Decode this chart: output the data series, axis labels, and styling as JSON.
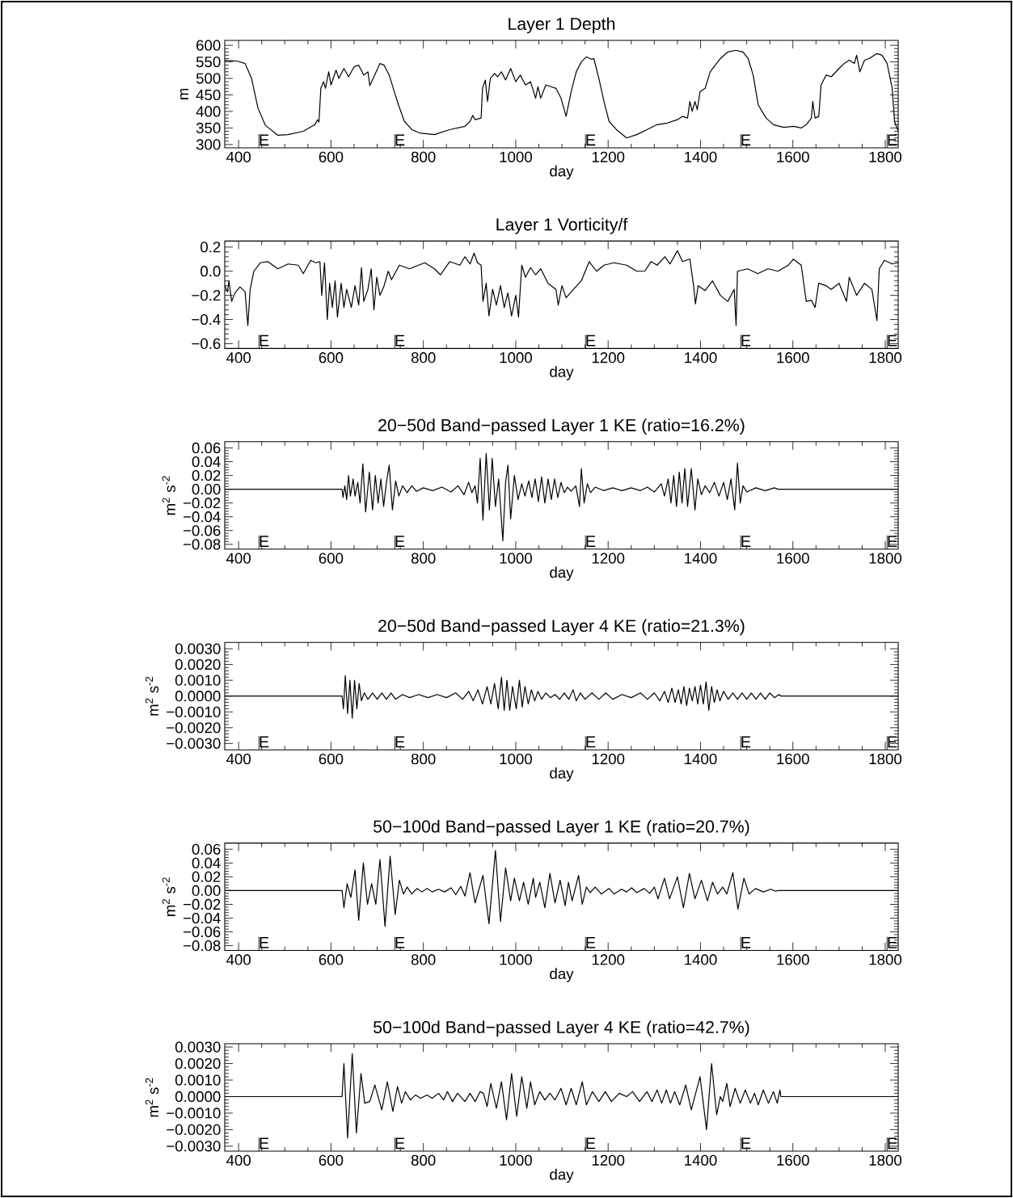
{
  "chart_data": [
    {
      "type": "line",
      "title": "Layer 1 Depth",
      "xlabel": "day",
      "ylabel": "m",
      "color": "#000000",
      "xlim": [
        370,
        1828
      ],
      "ylim": [
        290,
        615
      ],
      "xticks": [
        400,
        600,
        800,
        1000,
        1200,
        1400,
        1600,
        1800
      ],
      "yticks": [
        300,
        350,
        400,
        450,
        500,
        550,
        600
      ],
      "ref_lines": [
        {
          "axis": "x",
          "value": 444,
          "label": "E"
        },
        {
          "axis": "x",
          "value": 738,
          "label": "E"
        },
        {
          "axis": "x",
          "value": 1151,
          "label": "E"
        },
        {
          "axis": "x",
          "value": 1487,
          "label": "E"
        },
        {
          "axis": "x",
          "value": 1804,
          "label": "E"
        }
      ],
      "x": [
        370,
        398,
        414,
        428,
        442,
        458,
        485,
        507,
        540,
        565,
        571,
        574,
        578,
        584,
        588,
        595,
        600,
        611,
        617,
        628,
        638,
        650,
        660,
        671,
        680,
        684,
        693,
        706,
        715,
        726,
        737,
        746,
        759,
        775,
        792,
        824,
        857,
        890,
        901,
        907,
        912,
        925,
        928,
        934,
        939,
        945,
        954,
        961,
        969,
        978,
        989,
        1000,
        1010,
        1021,
        1032,
        1043,
        1048,
        1054,
        1065,
        1076,
        1087,
        1098,
        1109,
        1120,
        1131,
        1142,
        1153,
        1164,
        1169,
        1180,
        1191,
        1202,
        1218,
        1240,
        1262,
        1284,
        1306,
        1328,
        1350,
        1361,
        1372,
        1377,
        1382,
        1388,
        1393,
        1399,
        1410,
        1421,
        1432,
        1443,
        1459,
        1476,
        1492,
        1503,
        1514,
        1525,
        1542,
        1558,
        1580,
        1602,
        1618,
        1629,
        1640,
        1643,
        1648,
        1656,
        1661,
        1672,
        1683,
        1700,
        1711,
        1722,
        1733,
        1738,
        1745,
        1755,
        1765,
        1782,
        1793,
        1804,
        1815,
        1820,
        1828
      ],
      "values": [
        555,
        552,
        545,
        500,
        410,
        358,
        328,
        330,
        340,
        360,
        375,
        368,
        470,
        490,
        470,
        520,
        480,
        525,
        500,
        530,
        505,
        535,
        540,
        510,
        520,
        478,
        505,
        545,
        540,
        510,
        460,
        420,
        370,
        345,
        335,
        330,
        345,
        355,
        370,
        388,
        375,
        380,
        470,
        495,
        430,
        500,
        515,
        505,
        520,
        495,
        530,
        490,
        510,
        480,
        490,
        440,
        475,
        440,
        480,
        475,
        470,
        440,
        385,
        460,
        520,
        550,
        565,
        558,
        560,
        500,
        430,
        370,
        345,
        320,
        330,
        345,
        360,
        365,
        375,
        385,
        380,
        430,
        400,
        430,
        405,
        460,
        470,
        520,
        540,
        560,
        580,
        585,
        580,
        560,
        510,
        420,
        380,
        360,
        352,
        355,
        350,
        360,
        380,
        430,
        380,
        385,
        480,
        510,
        505,
        530,
        545,
        555,
        545,
        570,
        520,
        555,
        560,
        575,
        570,
        545,
        470,
        370,
        340
      ]
    },
    {
      "type": "line",
      "title": "Layer 1 Vorticity/f",
      "xlabel": "day",
      "color": "#000000",
      "xlim": [
        370,
        1828
      ],
      "ylim": [
        -0.64,
        0.25
      ],
      "xticks": [
        400,
        600,
        800,
        1000,
        1200,
        1400,
        1600,
        1800
      ],
      "yticks": [
        {
          "value": -0.6,
          "label": "−0.6"
        },
        {
          "value": -0.4,
          "label": "−0.4"
        },
        {
          "value": -0.2,
          "label": "−0.2"
        },
        {
          "value": 0,
          "label": "0.0"
        },
        0.2
      ],
      "ref_lines": [
        {
          "axis": "x",
          "value": 444,
          "label": "E"
        },
        {
          "axis": "x",
          "value": 738,
          "label": "E"
        },
        {
          "axis": "x",
          "value": 1151,
          "label": "E"
        },
        {
          "axis": "x",
          "value": 1487,
          "label": "E"
        },
        {
          "axis": "x",
          "value": 1804,
          "label": "E"
        }
      ],
      "x": [
        370,
        376,
        379,
        385,
        392,
        403,
        414,
        420,
        425,
        433,
        447,
        463,
        485,
        507,
        529,
        540,
        556,
        567,
        576,
        580,
        586,
        592,
        597,
        603,
        609,
        614,
        622,
        628,
        634,
        644,
        652,
        660,
        666,
        671,
        680,
        687,
        693,
        699,
        706,
        715,
        724,
        731,
        748,
        770,
        803,
        824,
        837,
        857,
        879,
        890,
        901,
        910,
        917,
        925,
        929,
        936,
        942,
        950,
        958,
        967,
        975,
        983,
        991,
        1000,
        1006,
        1013,
        1021,
        1032,
        1043,
        1054,
        1070,
        1087,
        1092,
        1100,
        1109,
        1125,
        1142,
        1159,
        1175,
        1191,
        1213,
        1240,
        1262,
        1279,
        1293,
        1306,
        1323,
        1334,
        1350,
        1361,
        1377,
        1385,
        1389,
        1395,
        1410,
        1426,
        1443,
        1459,
        1473,
        1477,
        1480,
        1502,
        1524,
        1546,
        1568,
        1590,
        1601,
        1618,
        1629,
        1640,
        1648,
        1656,
        1672,
        1683,
        1700,
        1716,
        1722,
        1738,
        1755,
        1771,
        1782,
        1787,
        1798,
        1815,
        1828
      ],
      "values": [
        -0.12,
        -0.17,
        -0.08,
        -0.25,
        -0.18,
        -0.13,
        -0.17,
        -0.45,
        -0.15,
        0.0,
        0.07,
        0.08,
        0.02,
        0.06,
        0.05,
        -0.02,
        0.09,
        0.07,
        0.08,
        -0.2,
        0.07,
        -0.4,
        -0.1,
        -0.3,
        -0.08,
        -0.38,
        -0.1,
        -0.3,
        -0.15,
        -0.3,
        -0.12,
        -0.28,
        0.03,
        -0.25,
        -0.15,
        0.02,
        -0.32,
        -0.05,
        -0.2,
        -0.12,
        0.0,
        -0.07,
        0.05,
        0.02,
        0.07,
        0.02,
        -0.03,
        0.08,
        0.05,
        0.12,
        0.06,
        0.15,
        0.07,
        0.05,
        -0.25,
        -0.1,
        -0.37,
        -0.15,
        -0.28,
        -0.12,
        -0.3,
        -0.18,
        -0.37,
        -0.2,
        -0.38,
        0.05,
        -0.05,
        0.03,
        -0.03,
        0.02,
        -0.1,
        -0.15,
        -0.28,
        -0.12,
        -0.22,
        -0.15,
        -0.08,
        0.08,
        0.0,
        0.05,
        0.07,
        0.05,
        0.0,
        0.0,
        0.08,
        0.05,
        0.12,
        0.06,
        0.17,
        0.08,
        0.1,
        -0.12,
        -0.27,
        -0.12,
        -0.16,
        -0.08,
        -0.2,
        -0.25,
        -0.15,
        -0.45,
        0.0,
        0.02,
        -0.02,
        0.02,
        0.0,
        0.05,
        0.1,
        0.05,
        -0.25,
        -0.24,
        -0.3,
        -0.1,
        -0.12,
        -0.15,
        -0.1,
        -0.25,
        -0.05,
        -0.2,
        -0.1,
        -0.15,
        -0.41,
        0.02,
        0.09,
        0.06,
        0.07
      ]
    },
    {
      "type": "line",
      "title": "20−50d Band−passed Layer 1 KE (ratio=16.2%)",
      "xlabel": "day",
      "ylabel": "m$^{2}$ s$^{-2}$",
      "color": "#000000",
      "xlim": [
        370,
        1828
      ],
      "ylim": [
        -0.087,
        0.069
      ],
      "xticks": [
        400,
        600,
        800,
        1000,
        1200,
        1400,
        1600,
        1800
      ],
      "yticks": [
        {
          "value": -0.08,
          "label": "−0.08"
        },
        {
          "value": -0.06,
          "label": "−0.06"
        },
        {
          "value": -0.04,
          "label": "−0.04"
        },
        {
          "value": -0.02,
          "label": "−0.02"
        },
        {
          "value": 0,
          "label": "0.00"
        },
        0.02,
        0.04,
        0.06
      ],
      "ref_lines": [
        {
          "axis": "x",
          "value": 444,
          "label": "E"
        },
        {
          "axis": "x",
          "value": 738,
          "label": "E"
        },
        {
          "axis": "x",
          "value": 1151,
          "label": "E"
        },
        {
          "axis": "x",
          "value": 1487,
          "label": "E"
        },
        {
          "axis": "x",
          "value": 1804,
          "label": "E"
        }
      ],
      "x": [
        370,
        624,
        626,
        630,
        634,
        638,
        642,
        648,
        652,
        658,
        663,
        669,
        675,
        683,
        690,
        696,
        702,
        708,
        714,
        720,
        726,
        733,
        740,
        747,
        755,
        765,
        775,
        785,
        800,
        820,
        840,
        860,
        875,
        888,
        898,
        905,
        912,
        917,
        923,
        929,
        936,
        943,
        949,
        956,
        963,
        972,
        978,
        983,
        989,
        997,
        1005,
        1013,
        1020,
        1028,
        1035,
        1042,
        1049,
        1056,
        1063,
        1070,
        1077,
        1084,
        1091,
        1098,
        1105,
        1112,
        1120,
        1130,
        1138,
        1142,
        1148,
        1155,
        1162,
        1172,
        1190,
        1210,
        1230,
        1250,
        1270,
        1285,
        1300,
        1315,
        1322,
        1330,
        1336,
        1342,
        1348,
        1354,
        1360,
        1366,
        1372,
        1380,
        1388,
        1394,
        1402,
        1410,
        1420,
        1430,
        1440,
        1450,
        1458,
        1466,
        1474,
        1480,
        1486,
        1492,
        1500,
        1520,
        1540,
        1560,
        1568,
        1828
      ],
      "values": [
        0,
        0,
        -0.012,
        0.005,
        -0.015,
        0.02,
        -0.01,
        0.015,
        -0.01,
        0.01,
        -0.02,
        0.037,
        -0.033,
        0.025,
        -0.03,
        0.02,
        -0.02,
        0.015,
        -0.025,
        0.01,
        0.035,
        -0.03,
        0.012,
        -0.01,
        0.005,
        -0.005,
        0.005,
        -0.003,
        0.002,
        -0.002,
        0.003,
        -0.004,
        0.005,
        -0.008,
        0.01,
        -0.005,
        0.005,
        -0.02,
        0.045,
        -0.045,
        0.052,
        -0.03,
        0.045,
        -0.025,
        0.015,
        -0.075,
        0.01,
        0.035,
        -0.043,
        0.02,
        -0.015,
        0.008,
        -0.01,
        0.012,
        -0.012,
        0.015,
        -0.018,
        0.018,
        -0.02,
        0.015,
        -0.015,
        0.015,
        -0.012,
        0.01,
        -0.005,
        0.003,
        -0.003,
        0.005,
        -0.025,
        0.03,
        -0.02,
        0.008,
        -0.005,
        0.003,
        -0.002,
        0.002,
        -0.002,
        0.002,
        -0.002,
        0.003,
        -0.004,
        0.008,
        -0.01,
        0.015,
        -0.02,
        0.02,
        -0.025,
        0.025,
        -0.02,
        0.03,
        -0.025,
        0.03,
        -0.03,
        0.015,
        -0.008,
        0.005,
        -0.005,
        0.01,
        -0.01,
        0.01,
        -0.015,
        0.015,
        -0.03,
        0.038,
        -0.02,
        0.005,
        -0.004,
        0.002,
        -0.002,
        0.002,
        0,
        0
      ]
    },
    {
      "type": "line",
      "title": "20−50d Band−passed Layer 4 KE (ratio=21.3%)",
      "xlabel": "day",
      "ylabel": "m$^{2}$ s$^{-2}$",
      "color": "#000000",
      "xlim": [
        370,
        1828
      ],
      "ylim": [
        -0.0034,
        0.0034
      ],
      "xticks": [
        400,
        600,
        800,
        1000,
        1200,
        1400,
        1600,
        1800
      ],
      "yticks": [
        {
          "value": -0.003,
          "label": "−0.0030"
        },
        {
          "value": -0.002,
          "label": "−0.0020"
        },
        {
          "value": -0.001,
          "label": "−0.0010"
        },
        {
          "value": 0,
          "label": "0.0000"
        },
        {
          "value": 0.001,
          "label": "0.0010"
        },
        {
          "value": 0.002,
          "label": "0.0020"
        },
        {
          "value": 0.003,
          "label": "0.0030"
        }
      ],
      "ref_lines": [
        {
          "axis": "x",
          "value": 444,
          "label": "E"
        },
        {
          "axis": "x",
          "value": 738,
          "label": "E"
        },
        {
          "axis": "x",
          "value": 1151,
          "label": "E"
        },
        {
          "axis": "x",
          "value": 1487,
          "label": "E"
        },
        {
          "axis": "x",
          "value": 1804,
          "label": "E"
        }
      ],
      "x": [
        370,
        624,
        627,
        631,
        636,
        641,
        646,
        651,
        656,
        661,
        666,
        672,
        680,
        690,
        700,
        710,
        720,
        730,
        740,
        755,
        770,
        790,
        810,
        830,
        850,
        870,
        885,
        898,
        908,
        918,
        928,
        938,
        946,
        954,
        962,
        969,
        975,
        981,
        987,
        993,
        1001,
        1008,
        1014,
        1020,
        1027,
        1034,
        1041,
        1048,
        1056,
        1065,
        1075,
        1085,
        1095,
        1105,
        1115,
        1124,
        1131,
        1140,
        1150,
        1165,
        1180,
        1195,
        1210,
        1230,
        1250,
        1270,
        1285,
        1300,
        1312,
        1322,
        1330,
        1338,
        1345,
        1352,
        1358,
        1364,
        1370,
        1376,
        1382,
        1388,
        1394,
        1400,
        1406,
        1412,
        1418,
        1424,
        1430,
        1436,
        1442,
        1450,
        1460,
        1470,
        1480,
        1490,
        1500,
        1510,
        1520,
        1530,
        1540,
        1550,
        1560,
        1570,
        1574,
        1828
      ],
      "values": [
        0,
        0,
        -0.0008,
        0.0013,
        -0.0011,
        0.001,
        -0.0014,
        0.001,
        -0.0008,
        0.0008,
        -0.0003,
        0.0002,
        -0.0002,
        0.0002,
        -0.0002,
        0.0002,
        -0.0002,
        0.0002,
        -0.0002,
        0.0001,
        -0.0001,
        0.0001,
        -0.0001,
        0.0001,
        -0.0001,
        0.0002,
        -0.0002,
        0.0003,
        -0.0003,
        0.0004,
        -0.0005,
        0.0006,
        -0.0005,
        0.0008,
        -0.0008,
        0.0012,
        -0.0009,
        0.001,
        -0.0009,
        0.0006,
        -0.0008,
        0.001,
        -0.0007,
        0.0006,
        -0.0005,
        0.0004,
        -0.0003,
        0.0003,
        -0.0002,
        0.0002,
        -0.0001,
        0.0001,
        -0.0002,
        0.0002,
        -0.0002,
        0.0004,
        -0.0003,
        0.0002,
        -0.0002,
        0.0002,
        -0.0002,
        0.0002,
        -0.0002,
        0.0001,
        -0.0001,
        0.0002,
        -0.0002,
        0.0002,
        -0.0003,
        0.0003,
        -0.0004,
        0.0005,
        -0.0004,
        0.0004,
        -0.0005,
        0.0006,
        -0.0006,
        0.0005,
        -0.0003,
        0.0006,
        -0.0005,
        0.0007,
        -0.0005,
        0.0009,
        -0.0009,
        0.0006,
        -0.0004,
        0.0004,
        -0.0003,
        0.0003,
        -0.0002,
        0.0002,
        -0.0002,
        0.0002,
        -0.0002,
        0.0002,
        -0.0002,
        0.0002,
        -0.0002,
        0.0002,
        -0.0001,
        0.0001,
        0,
        0
      ]
    },
    {
      "type": "line",
      "title": "50−100d Band−passed Layer 1 KE (ratio=20.7%)",
      "xlabel": "day",
      "ylabel": "m$^{2}$ s$^{-2}$",
      "color": "#000000",
      "xlim": [
        370,
        1828
      ],
      "ylim": [
        -0.087,
        0.069
      ],
      "xticks": [
        400,
        600,
        800,
        1000,
        1200,
        1400,
        1600,
        1800
      ],
      "yticks": [
        {
          "value": -0.08,
          "label": "−0.08"
        },
        {
          "value": -0.06,
          "label": "−0.06"
        },
        {
          "value": -0.04,
          "label": "−0.04"
        },
        {
          "value": -0.02,
          "label": "−0.02"
        },
        {
          "value": 0,
          "label": "0.00"
        },
        0.02,
        0.04,
        0.06
      ],
      "ref_lines": [
        {
          "axis": "x",
          "value": 444,
          "label": "E"
        },
        {
          "axis": "x",
          "value": 738,
          "label": "E"
        },
        {
          "axis": "x",
          "value": 1151,
          "label": "E"
        },
        {
          "axis": "x",
          "value": 1487,
          "label": "E"
        },
        {
          "axis": "x",
          "value": 1804,
          "label": "E"
        }
      ],
      "x": [
        370,
        624,
        628,
        635,
        643,
        652,
        660,
        670,
        679,
        688,
        697,
        706,
        717,
        728,
        739,
        748,
        757,
        765,
        775,
        786,
        797,
        808,
        819,
        833,
        846,
        860,
        870,
        881,
        890,
        901,
        912,
        929,
        942,
        956,
        967,
        978,
        989,
        997,
        1008,
        1017,
        1027,
        1038,
        1043,
        1052,
        1063,
        1074,
        1085,
        1096,
        1107,
        1114,
        1122,
        1136,
        1144,
        1153,
        1161,
        1172,
        1185,
        1202,
        1213,
        1229,
        1240,
        1251,
        1262,
        1278,
        1290,
        1300,
        1308,
        1322,
        1333,
        1350,
        1363,
        1376,
        1388,
        1402,
        1415,
        1426,
        1437,
        1448,
        1457,
        1470,
        1481,
        1494,
        1505,
        1519,
        1536,
        1552,
        1563,
        1568,
        1828
      ],
      "values": [
        0,
        0,
        -0.025,
        0.01,
        -0.01,
        0.03,
        -0.043,
        0.04,
        -0.02,
        0.01,
        -0.02,
        0.045,
        -0.052,
        0.05,
        -0.035,
        0.015,
        -0.005,
        0.005,
        -0.005,
        0.003,
        -0.002,
        0.003,
        -0.002,
        0.002,
        -0.002,
        0.004,
        -0.006,
        0.006,
        -0.008,
        0.026,
        -0.018,
        0.022,
        -0.048,
        0.058,
        -0.045,
        0.033,
        -0.015,
        0.018,
        -0.015,
        0.012,
        -0.02,
        0.018,
        -0.01,
        0.012,
        -0.025,
        0.025,
        -0.018,
        0.015,
        -0.022,
        0.012,
        -0.015,
        0.022,
        -0.02,
        0.005,
        -0.003,
        0.005,
        -0.005,
        0.003,
        -0.005,
        0.002,
        -0.002,
        0.004,
        -0.003,
        0.003,
        -0.004,
        0.005,
        -0.012,
        0.018,
        -0.012,
        0.02,
        -0.025,
        0.025,
        -0.012,
        0.015,
        -0.015,
        0.012,
        -0.005,
        0.005,
        -0.005,
        0.026,
        -0.027,
        0.018,
        -0.005,
        0.003,
        -0.002,
        0.002,
        -0.001,
        0,
        0
      ]
    },
    {
      "type": "line",
      "title": "50−100d Band−passed Layer 4 KE (ratio=42.7%)",
      "xlabel": "day",
      "ylabel": "m$^{2}$ s$^{-2}$",
      "color": "#000000",
      "xlim": [
        370,
        1828
      ],
      "ylim": [
        -0.0033,
        0.0032
      ],
      "xticks": [
        400,
        600,
        800,
        1000,
        1200,
        1400,
        1600,
        1800
      ],
      "yticks": [
        {
          "value": -0.003,
          "label": "−0.0030"
        },
        {
          "value": -0.002,
          "label": "−0.0020"
        },
        {
          "value": -0.001,
          "label": "−0.0010"
        },
        {
          "value": 0,
          "label": "0.0000"
        },
        {
          "value": 0.001,
          "label": "0.0010"
        },
        {
          "value": 0.002,
          "label": "0.0020"
        },
        {
          "value": 0.003,
          "label": "0.0030"
        }
      ],
      "ref_lines": [
        {
          "axis": "x",
          "value": 444,
          "label": "E"
        },
        {
          "axis": "x",
          "value": 738,
          "label": "E"
        },
        {
          "axis": "x",
          "value": 1151,
          "label": "E"
        },
        {
          "axis": "x",
          "value": 1487,
          "label": "E"
        },
        {
          "axis": "x",
          "value": 1804,
          "label": "E"
        }
      ],
      "x": [
        370,
        624,
        628,
        636,
        646,
        655,
        665,
        673,
        684,
        695,
        710,
        722,
        734,
        744,
        753,
        761,
        772,
        783,
        794,
        808,
        819,
        833,
        844,
        852,
        863,
        874,
        890,
        901,
        912,
        923,
        930,
        938,
        946,
        958,
        969,
        980,
        991,
        1002,
        1013,
        1024,
        1032,
        1041,
        1052,
        1063,
        1074,
        1085,
        1098,
        1109,
        1120,
        1131,
        1144,
        1153,
        1166,
        1180,
        1194,
        1207,
        1224,
        1240,
        1253,
        1268,
        1284,
        1295,
        1306,
        1316,
        1326,
        1335,
        1344,
        1355,
        1368,
        1380,
        1399,
        1413,
        1424,
        1435,
        1443,
        1448,
        1457,
        1464,
        1475,
        1486,
        1497,
        1508,
        1517,
        1525,
        1536,
        1547,
        1558,
        1566,
        1572,
        1574,
        1828
      ],
      "values": [
        0,
        0,
        0.002,
        -0.0025,
        0.0026,
        -0.0022,
        0.0014,
        -0.0004,
        -0.0003,
        0.0007,
        -0.0008,
        0.0009,
        -0.0009,
        0.0006,
        -0.0004,
        0.0003,
        -0.0002,
        0.0001,
        -0.0001,
        0.0001,
        -0.0001,
        0.0002,
        -0.0002,
        0.0003,
        -0.0003,
        0.0002,
        -0.0003,
        0.0002,
        -0.0003,
        0.0003,
        0.0002,
        -0.0006,
        0.0008,
        -0.0007,
        0.0009,
        -0.0014,
        0.0014,
        -0.0012,
        0.0012,
        -0.0007,
        0.0009,
        -0.0005,
        0.0003,
        -0.0002,
        0.0002,
        -0.0002,
        0.0005,
        -0.0005,
        0.0005,
        -0.0005,
        0.0009,
        -0.0005,
        0.0003,
        -0.0003,
        0.0003,
        -0.0003,
        0.0002,
        0.0,
        0.0003,
        -0.0003,
        0.0003,
        -0.0003,
        0.0004,
        -0.0004,
        0.0004,
        -0.0004,
        0.0003,
        -0.0005,
        0.0007,
        -0.0008,
        0.0012,
        -0.002,
        0.002,
        -0.0011,
        0.0,
        -0.0003,
        0.0008,
        -0.0006,
        0.0005,
        -0.0004,
        0.0004,
        -0.0004,
        0.0002,
        -0.0005,
        0.0004,
        -0.0004,
        0.0003,
        -0.0004,
        0.0004,
        0,
        0
      ]
    }
  ]
}
